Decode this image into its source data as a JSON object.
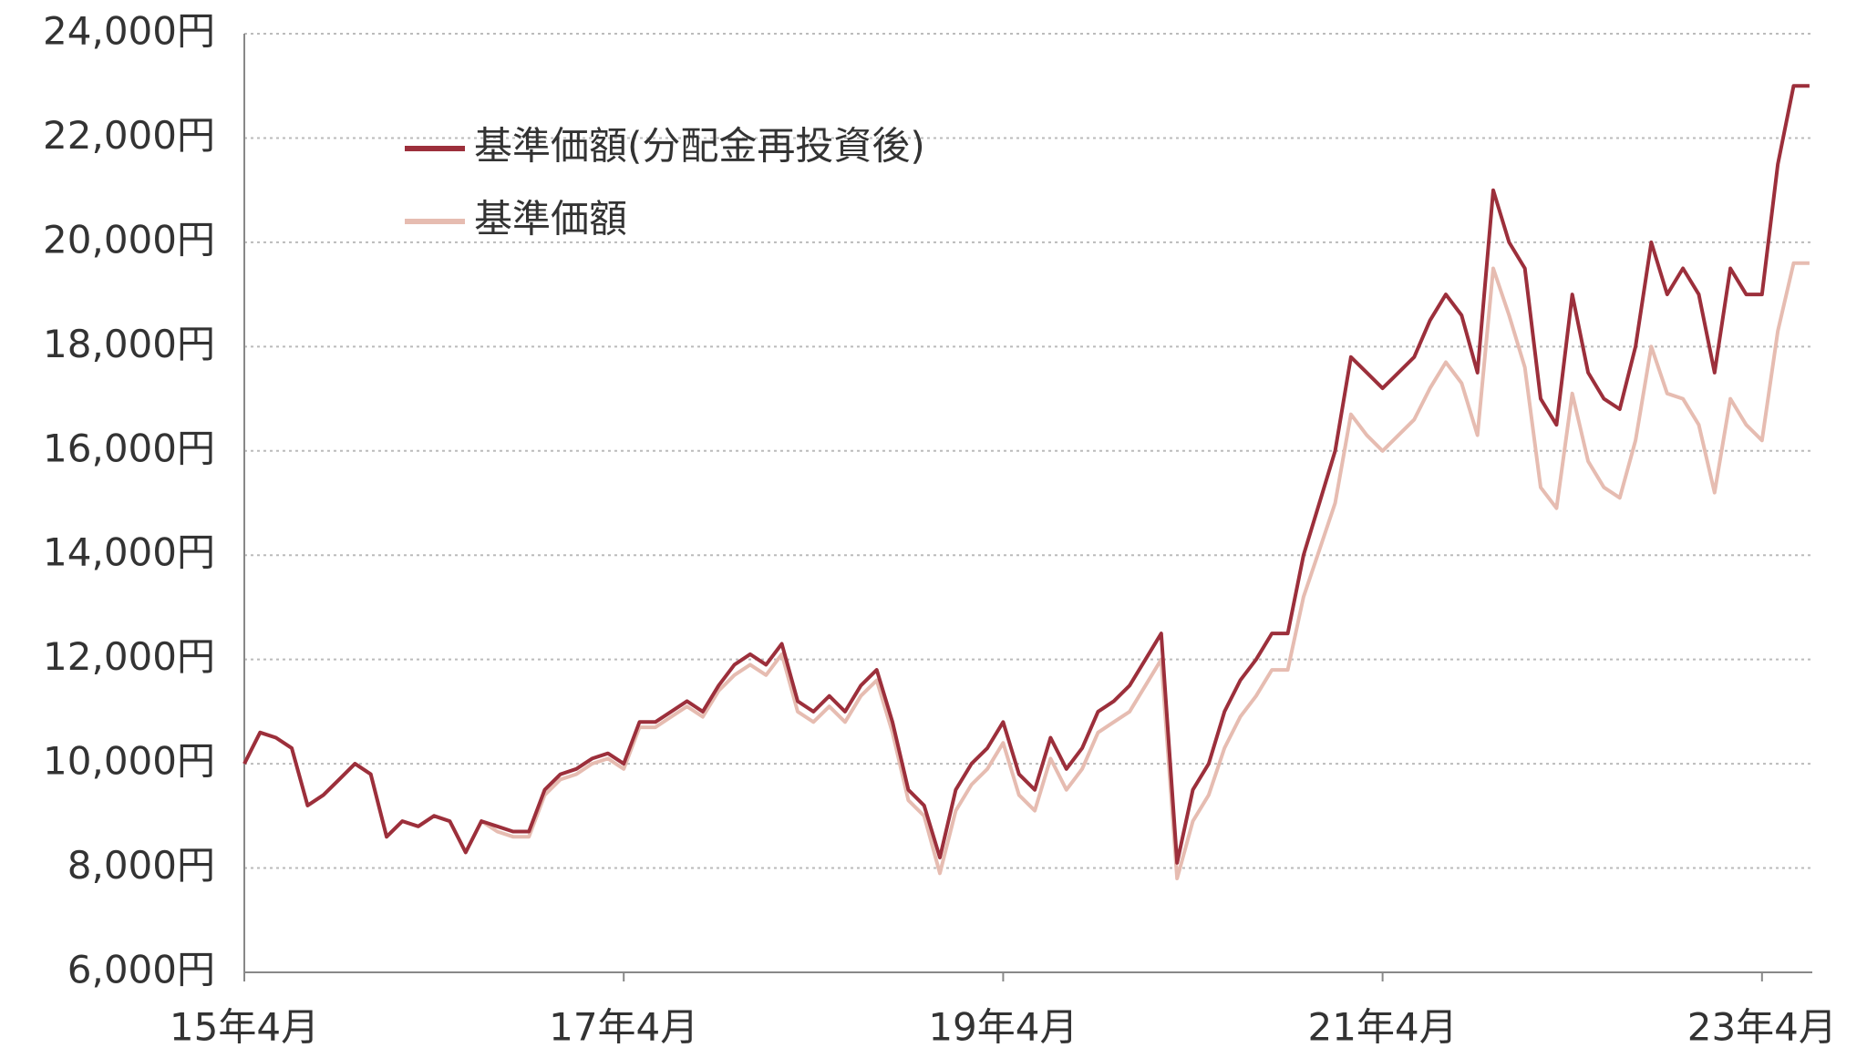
{
  "chart_data": {
    "type": "line",
    "categories": [
      "15年4月",
      null,
      null,
      null,
      null,
      null,
      null,
      null,
      null,
      null,
      null,
      null,
      null,
      null,
      null,
      null,
      null,
      null,
      null,
      null,
      null,
      null,
      null,
      null,
      "17年4月",
      null,
      null,
      null,
      null,
      null,
      null,
      null,
      null,
      null,
      null,
      null,
      null,
      null,
      null,
      null,
      null,
      null,
      null,
      null,
      null,
      null,
      null,
      null,
      "19年4月",
      null,
      null,
      null,
      null,
      null,
      null,
      null,
      null,
      null,
      null,
      null,
      null,
      null,
      null,
      null,
      null,
      null,
      null,
      null,
      null,
      null,
      null,
      null,
      "21年4月",
      null,
      null,
      null,
      null,
      null,
      null,
      null,
      null,
      null,
      null,
      null,
      null,
      null,
      null,
      null,
      null,
      null,
      null,
      null,
      null,
      null,
      null,
      null,
      "23年4月",
      null,
      null,
      null
    ],
    "series": [
      {
        "name": "基準価額(分配金再投資後)",
        "color": "#9c2f3b",
        "values": [
          10000,
          10600,
          10500,
          10300,
          9200,
          9400,
          9700,
          10000,
          9800,
          8600,
          8900,
          8800,
          9000,
          8900,
          8300,
          8900,
          8800,
          8700,
          8700,
          9500,
          9800,
          9900,
          10100,
          10200,
          10000,
          10800,
          10800,
          11000,
          11200,
          11000,
          11500,
          11900,
          12100,
          11900,
          12300,
          11200,
          11000,
          11300,
          11000,
          11500,
          11800,
          10800,
          9500,
          9200,
          8200,
          9500,
          10000,
          10300,
          10800,
          9800,
          9500,
          10500,
          9900,
          10300,
          11000,
          11200,
          11500,
          12000,
          12500,
          8100,
          9500,
          10000,
          11000,
          11600,
          12000,
          12500,
          12500,
          14000,
          15000,
          16000,
          17800,
          17500,
          17200,
          17500,
          17800,
          18500,
          19000,
          18600,
          17500,
          21000,
          20000,
          19500,
          17000,
          16500,
          19000,
          17500,
          17000,
          16800,
          18000,
          20000,
          19000,
          19500,
          19000,
          17500,
          19500,
          19000,
          19000,
          21500,
          23000,
          23000
        ]
      },
      {
        "name": "基準価額",
        "color": "#e6bcb1",
        "values": [
          10000,
          10600,
          10500,
          10300,
          9200,
          9400,
          9700,
          10000,
          9800,
          8600,
          8900,
          8800,
          9000,
          8900,
          8300,
          8900,
          8700,
          8600,
          8600,
          9400,
          9700,
          9800,
          10000,
          10100,
          9900,
          10700,
          10700,
          10900,
          11100,
          10900,
          11400,
          11700,
          11900,
          11700,
          12100,
          11000,
          10800,
          11100,
          10800,
          11300,
          11600,
          10600,
          9300,
          9000,
          7900,
          9100,
          9600,
          9900,
          10400,
          9400,
          9100,
          10100,
          9500,
          9900,
          10600,
          10800,
          11000,
          11500,
          12000,
          7800,
          8900,
          9400,
          10300,
          10900,
          11300,
          11800,
          11800,
          13200,
          14100,
          15000,
          16700,
          16300,
          16000,
          16300,
          16600,
          17200,
          17700,
          17300,
          16300,
          19500,
          18600,
          17600,
          15300,
          14900,
          17100,
          15800,
          15300,
          15100,
          16200,
          18000,
          17100,
          17000,
          16500,
          15200,
          17000,
          16500,
          16200,
          18300,
          19600,
          19600
        ]
      }
    ],
    "ylim": [
      6000,
      24000
    ],
    "yticks": [
      {
        "value": 6000,
        "label": "6,000円"
      },
      {
        "value": 8000,
        "label": "8,000円"
      },
      {
        "value": 10000,
        "label": "10,000円"
      },
      {
        "value": 12000,
        "label": "12,000円"
      },
      {
        "value": 14000,
        "label": "14,000円"
      },
      {
        "value": 16000,
        "label": "16,000円"
      },
      {
        "value": 18000,
        "label": "18,000円"
      },
      {
        "value": 20000,
        "label": "20,000円"
      },
      {
        "value": 22000,
        "label": "22,000円"
      },
      {
        "value": 24000,
        "label": "24,000円"
      }
    ],
    "grid": true,
    "legend": "upper-left"
  }
}
